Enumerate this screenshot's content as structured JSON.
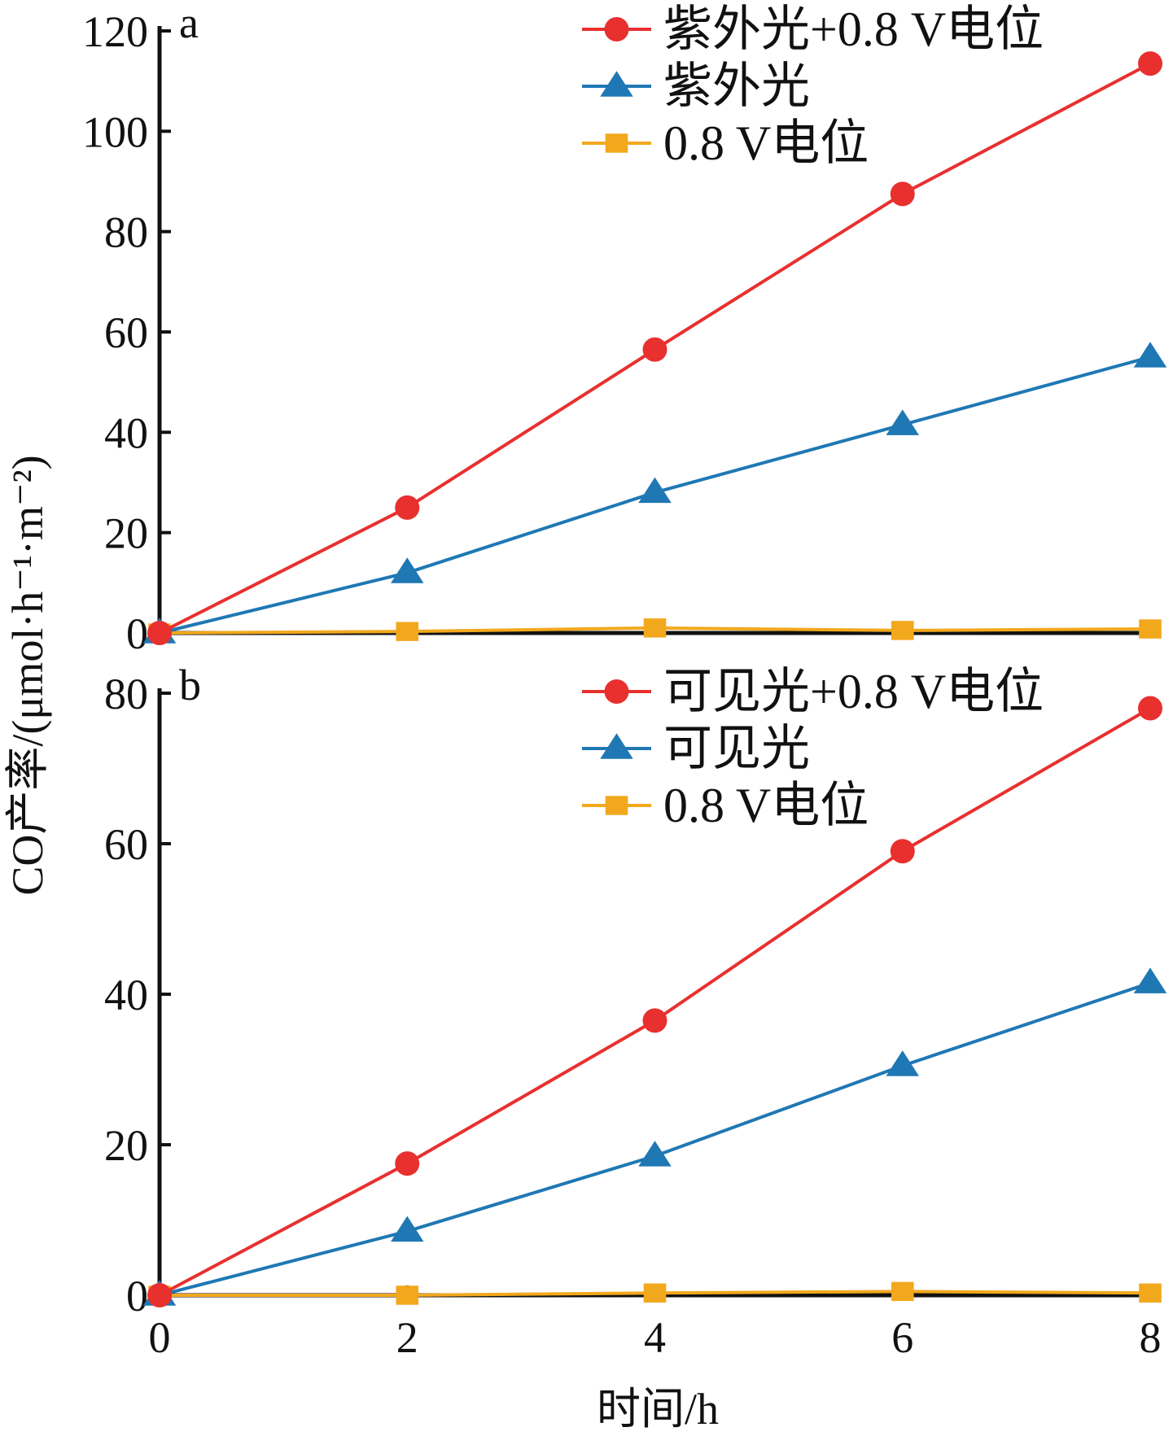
{
  "y_axis_title": "CO产率/(μmol·h⁻¹·m⁻²)",
  "x_axis_title": "时间/h",
  "x_tick_labels": [
    "0",
    "2",
    "4",
    "6",
    "8"
  ],
  "colors": {
    "red": "#e8302f",
    "blue": "#1f78b4",
    "orange": "#f2a81d",
    "axis": "#111111"
  },
  "chart_data": [
    {
      "type": "line",
      "panel_label": "a",
      "x": [
        0,
        2,
        4,
        6,
        8
      ],
      "ylim": [
        0,
        120
      ],
      "y_ticks": [
        0,
        20,
        40,
        60,
        80,
        100,
        120
      ],
      "y_tick_labels": [
        "0",
        "20",
        "40",
        "60",
        "80",
        "100",
        "120"
      ],
      "legend_position": "top-right",
      "series": [
        {
          "name": "紫外光+0.8 V电位",
          "marker": "circle",
          "color": "#e8302f",
          "values": [
            0,
            25,
            56.5,
            87.5,
            113.5
          ]
        },
        {
          "name": "紫外光",
          "marker": "triangle",
          "color": "#1f78b4",
          "values": [
            0,
            12,
            28,
            41.5,
            55
          ]
        },
        {
          "name": "0.8 V电位",
          "marker": "square",
          "color": "#f2a81d",
          "values": [
            0,
            0.3,
            1,
            0.5,
            0.8
          ]
        }
      ]
    },
    {
      "type": "line",
      "panel_label": "b",
      "x": [
        0,
        2,
        4,
        6,
        8
      ],
      "ylim": [
        0,
        80
      ],
      "y_ticks": [
        0,
        20,
        40,
        60,
        80
      ],
      "y_tick_labels": [
        "0",
        "20",
        "40",
        "60",
        "80"
      ],
      "legend_position": "top-right",
      "series": [
        {
          "name": "可见光+0.8 V电位",
          "marker": "circle",
          "color": "#e8302f",
          "values": [
            0,
            17.5,
            36.5,
            59,
            78
          ]
        },
        {
          "name": "可见光",
          "marker": "triangle",
          "color": "#1f78b4",
          "values": [
            0,
            8.5,
            18.5,
            30.5,
            41.5
          ]
        },
        {
          "name": "0.8 V电位",
          "marker": "square",
          "color": "#f2a81d",
          "values": [
            0,
            0,
            0.3,
            0.5,
            0.3
          ]
        }
      ]
    }
  ]
}
